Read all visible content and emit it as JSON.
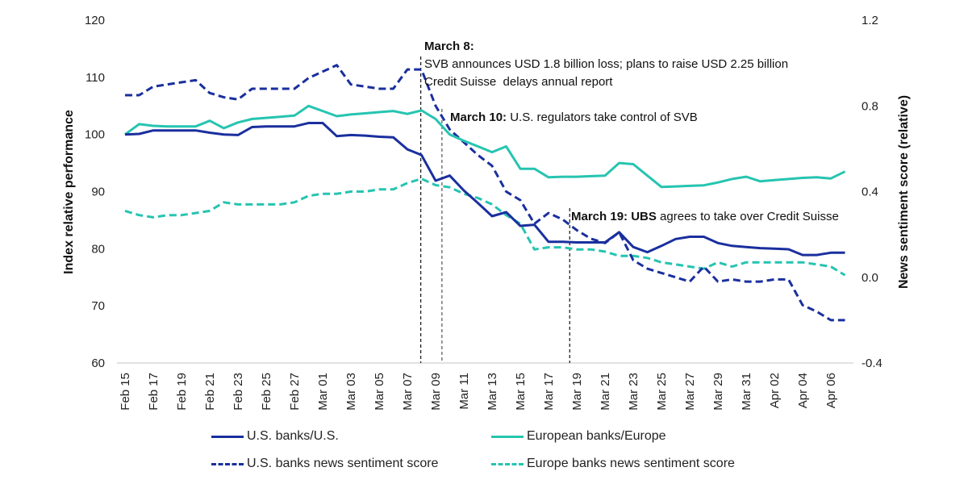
{
  "chart_data": {
    "type": "line",
    "title": "",
    "xlabel": "",
    "ylabel": "Index relative performance",
    "y2label": "News sentiment score (relative)",
    "ylim": [
      60,
      120
    ],
    "y2lim": [
      -0.4,
      1.2
    ],
    "yticks": [
      "120",
      "110",
      "100",
      "90",
      "80",
      "70",
      "60"
    ],
    "y2ticks": [
      "1.2",
      "0.8",
      "0.4",
      "0.0",
      "-0.4"
    ],
    "ytick_values": [
      120,
      110,
      100,
      90,
      80,
      70,
      60
    ],
    "y2tick_values": [
      1.2,
      0.8,
      0.4,
      0.0,
      -0.4
    ],
    "x": [
      "Feb 15",
      "Feb 16",
      "Feb 17",
      "Feb 18",
      "Feb 19",
      "Feb 20",
      "Feb 21",
      "Feb 22",
      "Feb 23",
      "Feb 24",
      "Feb 25",
      "Feb 26",
      "Feb 27",
      "Feb 28",
      "Mar 01",
      "Mar 02",
      "Mar 03",
      "Mar 04",
      "Mar 05",
      "Mar 06",
      "Mar 07",
      "Mar 08",
      "Mar 09",
      "Mar 10",
      "Mar 11",
      "Mar 12",
      "Mar 13",
      "Mar 14",
      "Mar 15",
      "Mar 16",
      "Mar 17",
      "Mar 18",
      "Mar 19",
      "Mar 20",
      "Mar 21",
      "Mar 22",
      "Mar 23",
      "Mar 24",
      "Mar 25",
      "Mar 26",
      "Mar 27",
      "Mar 28",
      "Mar 29",
      "Mar 30",
      "Mar 31",
      "Apr 01",
      "Apr 02",
      "Apr 03",
      "Apr 04",
      "Apr 05",
      "Apr 06",
      "Apr 07"
    ],
    "xtick_labels": [
      "Feb 15",
      "Feb 17",
      "Feb 19",
      "Feb 21",
      "Feb 23",
      "Feb 25",
      "Feb 27",
      "Mar 01",
      "Mar 03",
      "Mar 05",
      "Mar 07",
      "Mar 09",
      "Mar 11",
      "Mar 13",
      "Mar 15",
      "Mar 17",
      "Mar 19",
      "Mar 21",
      "Mar 23",
      "Mar 25",
      "Mar 27",
      "Mar 29",
      "Mar 31",
      "Apr 02",
      "Apr 04",
      "Apr 06"
    ],
    "grid": false,
    "legend_position": "bottom",
    "series": [
      {
        "name": "U.S. banks/U.S.",
        "axis": "left",
        "style": "solid",
        "color": "#1a2f9e",
        "values": [
          100,
          100.1,
          100.7,
          100.7,
          100.7,
          100.7,
          100.3,
          100.0,
          99.9,
          101.3,
          101.4,
          101.4,
          101.4,
          102.0,
          102.0,
          99.7,
          99.9,
          99.8,
          99.6,
          99.5,
          97.4,
          96.4,
          91.9,
          92.8,
          90.2,
          88.0,
          85.7,
          86.4,
          84.0,
          84.2,
          81.2,
          81.2,
          81.1,
          81.1,
          81.1,
          82.9,
          80.3,
          79.4,
          80.5,
          81.7,
          82.1,
          82.1,
          81.0,
          80.5,
          80.3,
          80.1,
          80.0,
          79.9,
          78.9,
          78.9,
          79.3,
          79.3
        ]
      },
      {
        "name": "European banks/Europe",
        "axis": "left",
        "style": "solid",
        "color": "#26c4b0",
        "values": [
          100,
          101.8,
          101.5,
          101.4,
          101.4,
          101.4,
          102.4,
          101.1,
          102.1,
          102.7,
          102.9,
          103.1,
          103.3,
          105.0,
          104.1,
          103.2,
          103.5,
          103.7,
          103.9,
          104.1,
          103.6,
          104.2,
          102.7,
          100.0,
          98.9,
          97.9,
          96.9,
          97.9,
          94.0,
          94.0,
          92.5,
          92.6,
          92.6,
          92.7,
          92.8,
          95.0,
          94.8,
          92.8,
          90.8,
          90.9,
          91.0,
          91.1,
          91.6,
          92.2,
          92.6,
          91.8,
          92.0,
          92.2,
          92.4,
          92.5,
          92.3,
          93.5
        ]
      },
      {
        "name": "U.S. banks news sentiment score",
        "axis": "right",
        "style": "dashed",
        "color": "#1a2f9e",
        "values": [
          0.85,
          0.85,
          0.89,
          0.9,
          0.91,
          0.92,
          0.86,
          0.84,
          0.83,
          0.88,
          0.88,
          0.88,
          0.88,
          0.93,
          0.96,
          0.99,
          0.9,
          0.89,
          0.88,
          0.88,
          0.97,
          0.97,
          0.8,
          0.69,
          0.63,
          0.57,
          0.52,
          0.4,
          0.36,
          0.25,
          0.3,
          0.27,
          0.22,
          0.18,
          0.16,
          0.21,
          0.08,
          0.04,
          0.02,
          0.0,
          -0.02,
          0.05,
          -0.02,
          -0.01,
          -0.02,
          -0.02,
          -0.01,
          -0.01,
          -0.13,
          -0.16,
          -0.2,
          -0.2
        ]
      },
      {
        "name": "Europe banks news sentiment score",
        "axis": "right",
        "style": "dashed",
        "color": "#26c4b0",
        "values": [
          0.31,
          0.29,
          0.28,
          0.29,
          0.29,
          0.3,
          0.31,
          0.35,
          0.34,
          0.34,
          0.34,
          0.34,
          0.35,
          0.38,
          0.39,
          0.39,
          0.4,
          0.4,
          0.41,
          0.41,
          0.44,
          0.46,
          0.43,
          0.42,
          0.39,
          0.37,
          0.34,
          0.29,
          0.25,
          0.13,
          0.14,
          0.14,
          0.13,
          0.13,
          0.12,
          0.1,
          0.1,
          0.09,
          0.07,
          0.06,
          0.05,
          0.04,
          0.07,
          0.05,
          0.07,
          0.07,
          0.07,
          0.07,
          0.07,
          0.06,
          0.05,
          0.01
        ]
      }
    ],
    "annotations": [
      {
        "date": "Mar 08",
        "title": "March 8:",
        "lines": [
          "SVB announces USD 1.8 billion loss; plans to raise USD 2.25 billion",
          "Credit Suisse  delays annual report"
        ]
      },
      {
        "date": "Mar 10",
        "title": "March 10:",
        "lines": [
          "U.S. regulators take control of SVB"
        ]
      },
      {
        "date": "Mar 19",
        "title": "March 19: UBS",
        "lines": [
          "agrees to take over Credit Suisse"
        ]
      }
    ]
  },
  "legend": [
    {
      "label": "U.S. banks/U.S.",
      "style": "solid",
      "color": "#1a2f9e"
    },
    {
      "label": "European banks/Europe",
      "style": "solid",
      "color": "#26c4b0"
    },
    {
      "label": "U.S. banks news sentiment score",
      "style": "dashed",
      "color": "#1a2f9e"
    },
    {
      "label": "Europe banks news sentiment score",
      "style": "dashed",
      "color": "#26c4b0"
    }
  ]
}
